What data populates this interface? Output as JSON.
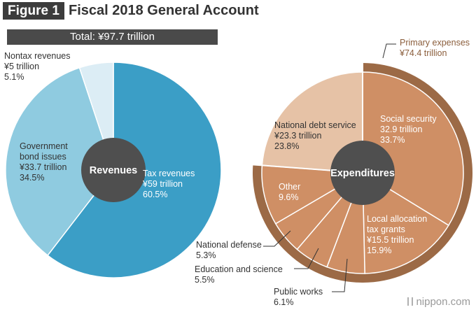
{
  "figure": {
    "badge": "Figure 1",
    "title": "Fiscal 2018 General Account"
  },
  "total": "Total: ¥97.7 trillion",
  "chart_data": [
    {
      "type": "pie",
      "title": "Revenues",
      "center_label": "Revenues",
      "slices": [
        {
          "name": "Tax revenues",
          "amount": "¥59 trillion",
          "pct_label": "60.5%",
          "value": 60.5,
          "color": "#3b9ec6"
        },
        {
          "name": "Government bond issues",
          "amount": "¥33.7 trillion",
          "pct_label": "34.5%",
          "value": 34.5,
          "color": "#8fcbe0"
        },
        {
          "name": "Nontax revenues",
          "amount": "¥5 trillion",
          "pct_label": "5.1%",
          "value": 5.1,
          "color": "#dcedf5"
        }
      ]
    },
    {
      "type": "pie",
      "title": "Expenditures",
      "center_label": "Expenditures",
      "slices": [
        {
          "name": "Social security",
          "amount": "32.9 trillion",
          "pct_label": "33.7%",
          "value": 33.7,
          "color": "#cf8f65"
        },
        {
          "name": "Local allocation tax grants",
          "amount": "¥15.5 trillion",
          "pct_label": "15.9%",
          "value": 15.9,
          "color": "#cf8f65"
        },
        {
          "name": "Public works",
          "amount": "",
          "pct_label": "6.1%",
          "value": 6.1,
          "color": "#cf8f65"
        },
        {
          "name": "Education and science",
          "amount": "",
          "pct_label": "5.5%",
          "value": 5.5,
          "color": "#cf8f65"
        },
        {
          "name": "National defense",
          "amount": "",
          "pct_label": "5.3%",
          "value": 5.3,
          "color": "#cf8f65"
        },
        {
          "name": "Other",
          "amount": "",
          "pct_label": "9.6%",
          "value": 9.6,
          "color": "#cf8f65"
        },
        {
          "name": "National debt service",
          "amount": "¥23.3 trillion",
          "pct_label": "23.8%",
          "value": 23.8,
          "color": "#e6c2a6"
        }
      ],
      "primary_expenses": {
        "name": "Primary expenses",
        "amount": "¥74.4 trillion",
        "value": 76.1,
        "color": "#9c6a46"
      }
    }
  ],
  "labels": {
    "nontax": "Nontax revenues\n¥5 trillion\n5.1%",
    "bond": "Government\nbond issues\n¥33.7 trillion\n34.5%",
    "tax": "Tax revenues\n¥59 trillion\n60.5%",
    "primary": "Primary expenses\n¥74.4 trillion",
    "debt": "National debt service\n¥23.3 trillion\n23.8%",
    "social": "Social security\n32.9 trillion\n33.7%",
    "other": "Other\n9.6%",
    "local": "Local allocation\ntax grants\n¥15.5 trillion\n15.9%",
    "defense": "National defense\n5.3%",
    "education": "Education and science\n5.5%",
    "publicworks": "Public works\n6.1%"
  },
  "logo": "nippon.com"
}
